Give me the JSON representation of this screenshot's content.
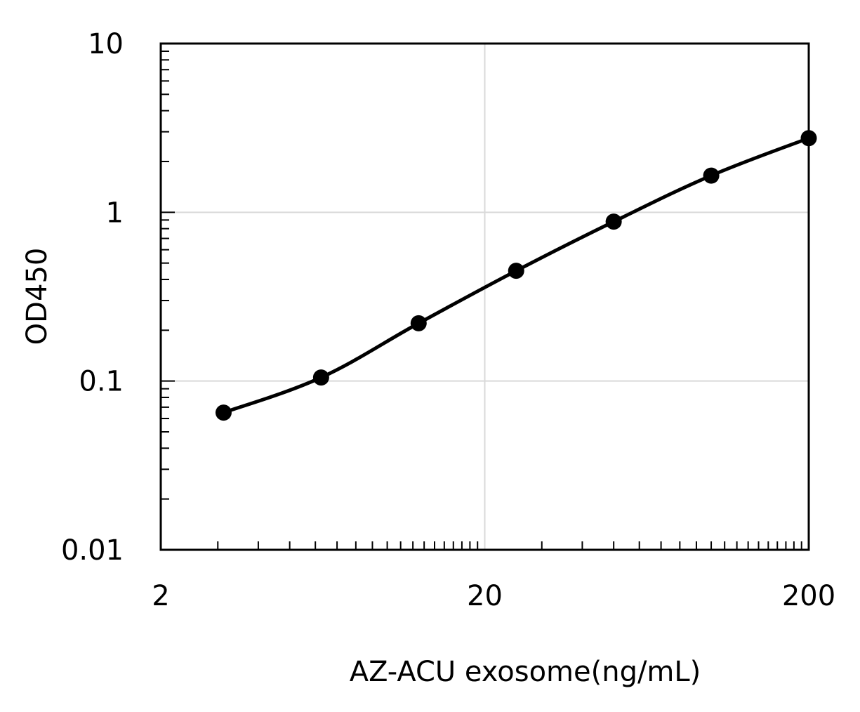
{
  "chart_data": {
    "type": "line",
    "xlabel": "AZ-ACU exosome(ng/mL)",
    "ylabel": "OD450",
    "x_scale": "log",
    "y_scale": "log",
    "xlim": [
      2,
      200
    ],
    "ylim": [
      0.01,
      10
    ],
    "x_ticks": [
      {
        "value": 2,
        "label": "2"
      },
      {
        "value": 20,
        "label": "20"
      },
      {
        "value": 200,
        "label": "200"
      }
    ],
    "y_ticks": [
      {
        "value": 0.01,
        "label": "0.01"
      },
      {
        "value": 0.1,
        "label": "0.1"
      },
      {
        "value": 1,
        "label": "1"
      },
      {
        "value": 10,
        "label": "10"
      }
    ],
    "grid": true,
    "legend": false,
    "series": [
      {
        "color": "#000000",
        "marker": "circle",
        "smooth": true,
        "points": [
          {
            "x": 3.125,
            "y": 0.065
          },
          {
            "x": 6.25,
            "y": 0.105
          },
          {
            "x": 12.5,
            "y": 0.22
          },
          {
            "x": 25,
            "y": 0.45
          },
          {
            "x": 50,
            "y": 0.88
          },
          {
            "x": 100,
            "y": 1.65
          },
          {
            "x": 200,
            "y": 2.75
          }
        ]
      }
    ],
    "colors": {
      "line": "#000000",
      "grid": "#d9d9d9",
      "axis": "#000000"
    }
  }
}
